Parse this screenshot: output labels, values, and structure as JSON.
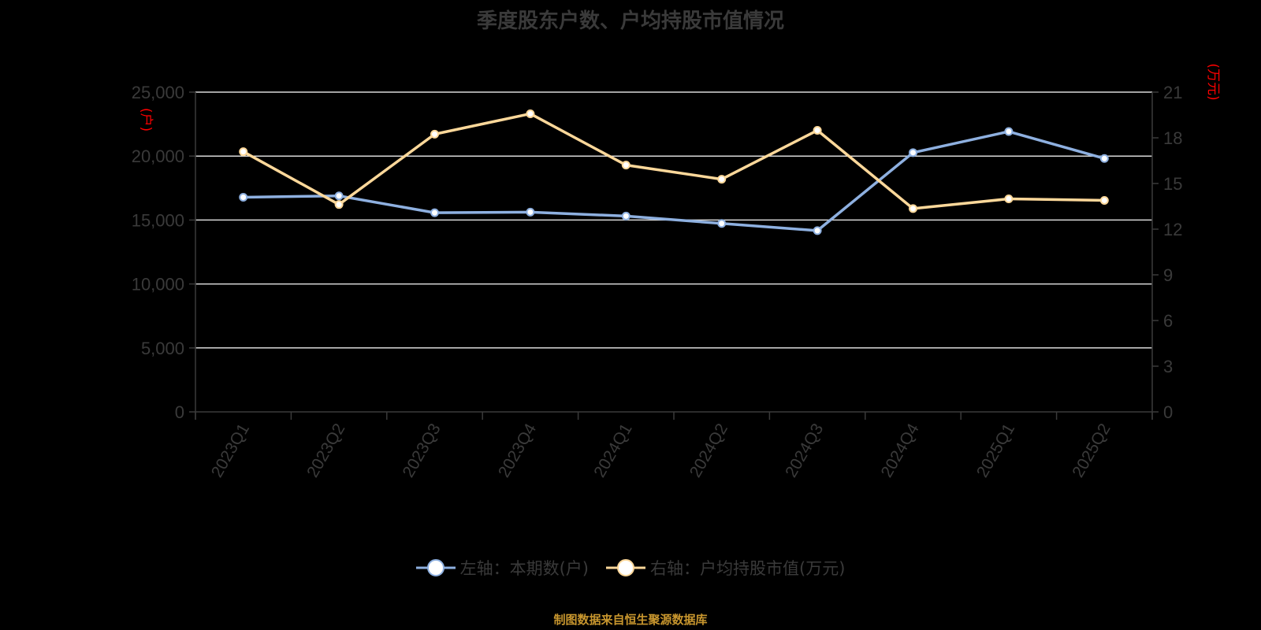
{
  "title": "季度股东户数、户均持股市值情况",
  "footer": "制图数据来自恒生聚源数据库",
  "left_axis": {
    "unit": "(户)",
    "ticks": [
      "0",
      "5,000",
      "10,000",
      "15,000",
      "20,000",
      "25,000"
    ]
  },
  "right_axis": {
    "unit": "(万元)",
    "ticks": [
      "0",
      "3",
      "6",
      "9",
      "12",
      "15",
      "18",
      "21"
    ]
  },
  "legend": [
    {
      "label": "左轴：本期数(户)",
      "color": "#8eb0e0"
    },
    {
      "label": "右轴：户均持股市值(万元)",
      "color": "#fdd89a"
    }
  ],
  "chart_data": {
    "type": "line",
    "title": "季度股东户数、户均持股市值情况",
    "categories": [
      "2023Q1",
      "2023Q2",
      "2023Q3",
      "2023Q4",
      "2024Q1",
      "2024Q2",
      "2024Q3",
      "2024Q4",
      "2025Q1",
      "2025Q2"
    ],
    "series": [
      {
        "name": "左轴：本期数(户)",
        "axis": "left",
        "color": "#8eb0e0",
        "values": [
          16780,
          16890,
          15570,
          15620,
          15310,
          14730,
          14170,
          20270,
          21920,
          19810
        ]
      },
      {
        "name": "右轴：户均持股市值(万元)",
        "axis": "right",
        "color": "#fdd89a",
        "values": [
          17.09,
          13.62,
          18.24,
          19.58,
          16.21,
          15.28,
          18.49,
          13.35,
          13.99,
          13.89
        ]
      }
    ],
    "xlabel": "",
    "ylabel_left": "(户)",
    "ylabel_right": "(万元)",
    "ylim_left": [
      0,
      25000
    ],
    "ylim_right": [
      0,
      21
    ],
    "grid": true,
    "legend_position": "bottom"
  }
}
